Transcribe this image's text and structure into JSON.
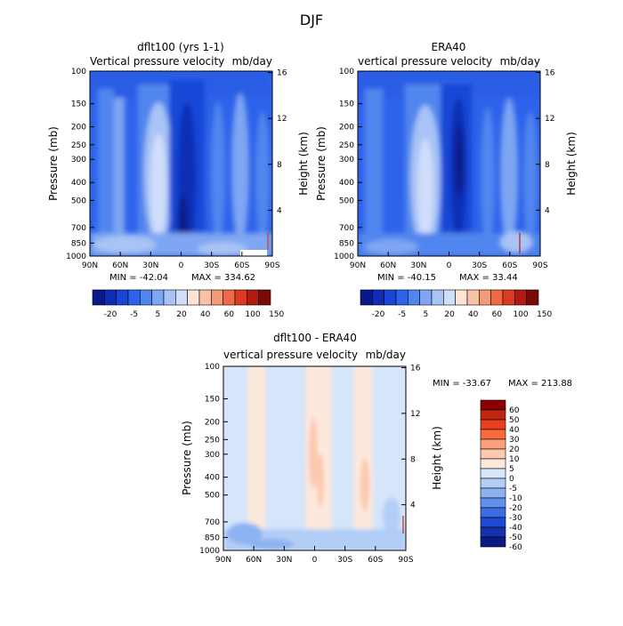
{
  "figure_title": "DJF",
  "chart_data": [
    {
      "type": "heatmap",
      "title": "dflt100 (yrs 1-1)",
      "subtitle_left": "Vertical pressure velocity",
      "subtitle_right": "mb/day",
      "ylabel": "Pressure (mb)",
      "y2label": "Height (km)",
      "x_ticks": [
        "90N",
        "60N",
        "30N",
        "0",
        "30S",
        "60S",
        "90S"
      ],
      "y_ticks": [
        "100",
        "150",
        "200",
        "250",
        "300",
        "400",
        "500",
        "700",
        "850",
        "1000"
      ],
      "y2_ticks": [
        "16",
        "12",
        "8",
        "4"
      ],
      "ylim": [
        1000,
        100
      ],
      "y_scale": "log",
      "min_label": "MIN = -42.04",
      "max_label": "MAX = 334.62",
      "colorbar_orientation": "horizontal",
      "colorbar_labels": [
        "-20",
        "-5",
        "5",
        "20",
        "40",
        "60",
        "100",
        "150"
      ]
    },
    {
      "type": "heatmap",
      "title": "ERA40",
      "subtitle_left": "vertical pressure velocity",
      "subtitle_right": "mb/day",
      "ylabel": "Pressure (mb)",
      "y2label": "Height (km)",
      "x_ticks": [
        "90N",
        "60N",
        "30N",
        "0",
        "30S",
        "60S",
        "90S"
      ],
      "y_ticks": [
        "100",
        "150",
        "200",
        "250",
        "300",
        "400",
        "500",
        "700",
        "850",
        "1000"
      ],
      "y2_ticks": [
        "16",
        "12",
        "8",
        "4"
      ],
      "ylim": [
        1000,
        100
      ],
      "y_scale": "log",
      "min_label": "MIN = -40.15",
      "max_label": "MAX = 33.44",
      "colorbar_orientation": "horizontal",
      "colorbar_labels": [
        "-20",
        "-5",
        "5",
        "20",
        "40",
        "60",
        "100",
        "150"
      ]
    },
    {
      "type": "heatmap",
      "title": "dflt100 - ERA40",
      "subtitle_left": "vertical pressure velocity",
      "subtitle_right": "mb/day",
      "ylabel": "Pressure (mb)",
      "y2label": "Height (km)",
      "x_ticks": [
        "90N",
        "60N",
        "30N",
        "0",
        "30S",
        "60S",
        "90S"
      ],
      "y_ticks": [
        "100",
        "150",
        "200",
        "250",
        "300",
        "400",
        "500",
        "700",
        "850",
        "1000"
      ],
      "y2_ticks": [
        "16",
        "12",
        "8",
        "4"
      ],
      "ylim": [
        1000,
        100
      ],
      "y_scale": "log",
      "min_label": "MIN = -33.67",
      "max_label": "MAX = 213.88",
      "colorbar_orientation": "vertical",
      "colorbar_labels": [
        "60",
        "50",
        "40",
        "30",
        "20",
        "10",
        "5",
        "0",
        "-5",
        "-10",
        "-20",
        "-30",
        "-40",
        "-50",
        "-60"
      ]
    }
  ],
  "colors": {
    "main_scale": [
      "#081a8a",
      "#0d2db5",
      "#1846d6",
      "#2d63ea",
      "#5186ee",
      "#7ea6f2",
      "#a8c3f5",
      "#d0defa",
      "#fde5d6",
      "#f9c2a6",
      "#f59a76",
      "#ee6a45",
      "#dc3b22",
      "#b31a12",
      "#7a0a08"
    ],
    "diff_scale": [
      "#8b0000",
      "#c0250e",
      "#e8401e",
      "#f76b3f",
      "#faa07a",
      "#fcc8ae",
      "#fde8dc",
      "#d5e5fa",
      "#b2cdf6",
      "#8cb2f1",
      "#628fec",
      "#3c6ce4",
      "#2148d0",
      "#1330ad",
      "#0a1a80"
    ]
  }
}
